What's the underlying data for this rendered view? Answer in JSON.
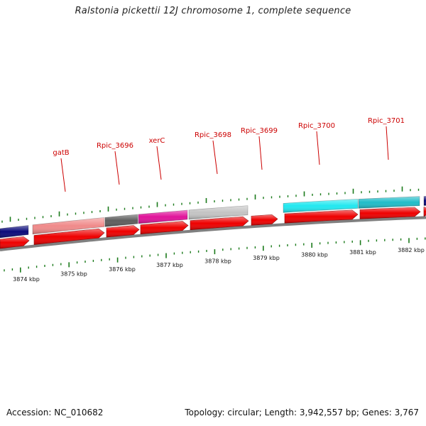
{
  "title": "Ralstonia pickettii 12J chromosome 1, complete sequence",
  "footer": {
    "accession": "Accession: NC_010682",
    "summary": "Topology: circular; Length: 3,942,557 bp; Genes: 3,767"
  },
  "colors": {
    "cds": "#ee0000",
    "backbone": "#808080",
    "tick": "#1a7a1a",
    "label": "#cc0000"
  },
  "scale_labels": [
    "3874 kbp",
    "3875 kbp",
    "3876 kbp",
    "3877 kbp",
    "3878 kbp",
    "3879 kbp",
    "3880 kbp",
    "3881 kbp",
    "3882 kbp"
  ],
  "gene_labels": [
    "gatB",
    "Rpic_3696",
    "xerC",
    "Rpic_3698",
    "Rpic_3699",
    "Rpic_3700",
    "Rpic_3701"
  ]
}
